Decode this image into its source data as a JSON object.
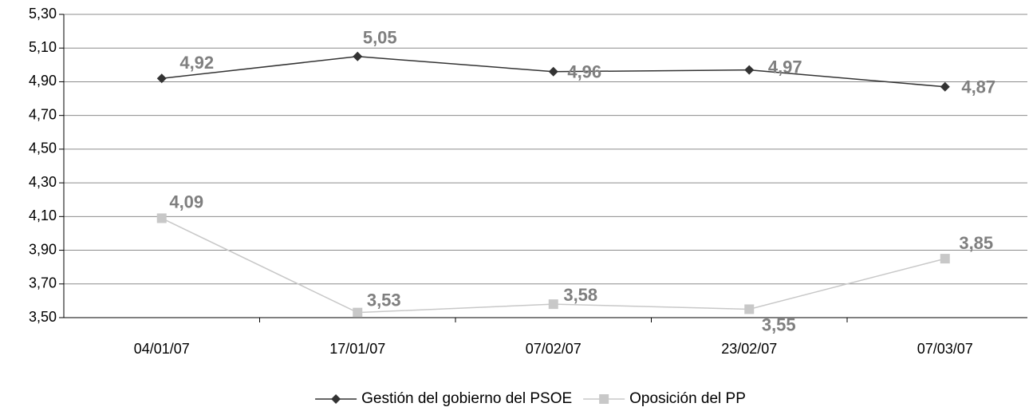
{
  "chart_data": {
    "type": "line",
    "categories": [
      "04/01/07",
      "17/01/07",
      "07/02/07",
      "23/02/07",
      "07/03/07"
    ],
    "series": [
      {
        "name": "Gestión del gobierno del PSOE",
        "color": "#333333",
        "marker": "diamond",
        "values": [
          4.92,
          5.05,
          4.96,
          4.97,
          4.87
        ],
        "value_labels": [
          "4,92",
          "5,05",
          "4,96",
          "4,97",
          "4,87"
        ]
      },
      {
        "name": "Oposición del PP",
        "color": "#c8c8c8",
        "marker": "square",
        "values": [
          4.09,
          3.53,
          3.58,
          3.55,
          3.85
        ],
        "value_labels": [
          "4,09",
          "3,53",
          "3,58",
          "3,55",
          "3,85"
        ]
      }
    ],
    "ylim": [
      3.5,
      5.3
    ],
    "yticks": [
      {
        "value": 3.5,
        "label": "3,50"
      },
      {
        "value": 3.7,
        "label": "3,70"
      },
      {
        "value": 3.9,
        "label": "3,90"
      },
      {
        "value": 4.1,
        "label": "4,10"
      },
      {
        "value": 4.3,
        "label": "4,30"
      },
      {
        "value": 4.5,
        "label": "4,50"
      },
      {
        "value": 4.7,
        "label": "4,70"
      },
      {
        "value": 4.9,
        "label": "4,90"
      },
      {
        "value": 5.1,
        "label": "5,10"
      },
      {
        "value": 5.3,
        "label": "5,30"
      }
    ],
    "grid": true,
    "legend": "bottom"
  }
}
